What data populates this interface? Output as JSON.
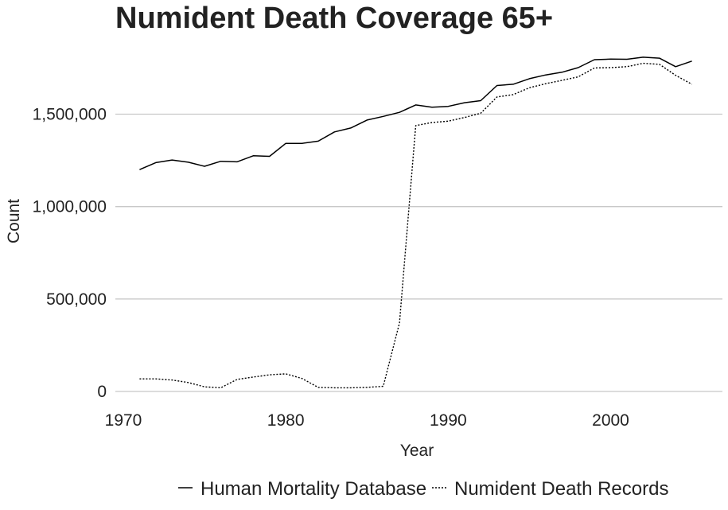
{
  "chart_data": {
    "type": "line",
    "title": "Numident Death Coverage 65+",
    "xlabel": "Year",
    "ylabel": "Count",
    "xlim": [
      1970,
      2006
    ],
    "ylim": [
      0,
      1850000
    ],
    "xticks": [
      1970,
      1980,
      1990,
      2000
    ],
    "xtick_labels": [
      "1970",
      "1980",
      "1990",
      "2000"
    ],
    "yticks": [
      0,
      500000,
      1000000,
      1500000
    ],
    "ytick_labels": [
      "0",
      "500,000",
      "1,000,000",
      "1,500,000"
    ],
    "grid": "horizontal major",
    "legend_position": "bottom",
    "x": [
      1971,
      1972,
      1973,
      1974,
      1975,
      1976,
      1977,
      1978,
      1979,
      1980,
      1981,
      1982,
      1983,
      1984,
      1985,
      1986,
      1987,
      1988,
      1989,
      1990,
      1991,
      1992,
      1993,
      1994,
      1995,
      1996,
      1997,
      1998,
      1999,
      2000,
      2001,
      2002,
      2003,
      2004,
      2005
    ],
    "series": [
      {
        "name": "Human Mortality Database",
        "line_style": "solid",
        "color": "#000000",
        "values": [
          1200000,
          1238000,
          1252000,
          1240000,
          1218000,
          1245000,
          1242000,
          1275000,
          1272000,
          1342000,
          1342000,
          1354000,
          1404000,
          1425000,
          1468000,
          1488000,
          1510000,
          1550000,
          1538000,
          1542000,
          1562000,
          1573000,
          1655000,
          1662000,
          1692000,
          1712000,
          1727000,
          1752000,
          1795000,
          1798000,
          1797000,
          1808000,
          1803000,
          1757000,
          1787000
        ]
      },
      {
        "name": "Numident Death Records",
        "line_style": "dotted",
        "color": "#000000",
        "values": [
          68000,
          68000,
          62000,
          48000,
          25000,
          20000,
          65000,
          78000,
          90000,
          95000,
          70000,
          22000,
          20000,
          20000,
          22000,
          28000,
          370000,
          1438000,
          1455000,
          1462000,
          1482000,
          1505000,
          1593000,
          1606000,
          1643000,
          1665000,
          1683000,
          1702000,
          1750000,
          1752000,
          1757000,
          1775000,
          1770000,
          1710000,
          1662000
        ]
      }
    ]
  }
}
